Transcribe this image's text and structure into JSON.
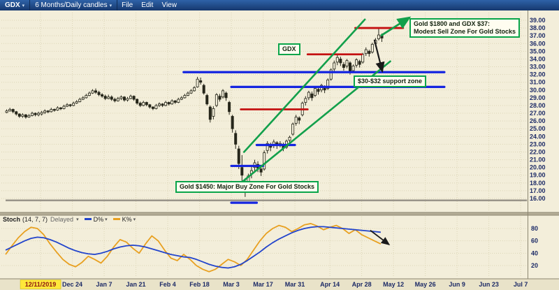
{
  "toolbar": {
    "symbol": "GDX",
    "timeframe": "6 Months/Daily candles",
    "caret": "▾",
    "menus": [
      "File",
      "Edit",
      "View"
    ]
  },
  "annotations": {
    "gdx_label": "GDX",
    "sell_line1": "Gold $1800 and GDX $37:",
    "sell_line2": "Modest Sell Zone For Gold Stocks",
    "support": "$30-$32 support zone",
    "buy": "Gold $1450: Major Buy Zone For Gold Stocks"
  },
  "stoch_header": {
    "name": "Stoch",
    "params": "(14, 7, 7)",
    "delayed": "Delayed",
    "caret": "▾",
    "d_label": "D%",
    "k_label": "K%"
  },
  "colors": {
    "background": "#f3eeda",
    "toolbar_blue": "#1d4484",
    "support_blue": "#1525e0",
    "resistance_red": "#c41010",
    "channel_green": "#12a04b",
    "annotation_green": "#0aa54a",
    "d_line_blue": "#2244cc",
    "k_line_orange": "#e8a020",
    "highlight_yellow": "#ffe83a"
  },
  "price_axis": [
    "39.00",
    "38.00",
    "37.00",
    "36.00",
    "35.00",
    "34.00",
    "33.00",
    "32.00",
    "31.00",
    "30.00",
    "29.00",
    "28.00",
    "27.00",
    "26.00",
    "25.00",
    "24.00",
    "23.00",
    "22.00",
    "21.00",
    "20.00",
    "19.00",
    "18.00",
    "17.00",
    "16.00"
  ],
  "stoch_axis": [
    "80",
    "60",
    "40",
    "20"
  ],
  "chart_data": {
    "type": "candlestick",
    "symbol": "GDX",
    "timeframe": "6 Months / Daily",
    "price_range": [
      16,
      39
    ],
    "date_ticks": [
      {
        "label": "12/11/2019",
        "slot": 11,
        "highlight": true
      },
      {
        "label": "Dec 24",
        "slot": 21
      },
      {
        "label": "Jan 7",
        "slot": 31
      },
      {
        "label": "Jan 21",
        "slot": 41
      },
      {
        "label": "Feb 4",
        "slot": 51
      },
      {
        "label": "Feb 18",
        "slot": 61
      },
      {
        "label": "Mar 3",
        "slot": 71
      },
      {
        "label": "Mar 17",
        "slot": 81
      },
      {
        "label": "Mar 31",
        "slot": 91
      },
      {
        "label": "Apr 14",
        "slot": 102
      },
      {
        "label": "Apr 28",
        "slot": 112
      },
      {
        "label": "May 12",
        "slot": 122
      },
      {
        "label": "May 26",
        "slot": 132
      },
      {
        "label": "Jun 9",
        "slot": 142
      },
      {
        "label": "Jun 23",
        "slot": 152
      },
      {
        "label": "Jul 7",
        "slot": 162
      }
    ],
    "candles_ohlc": [
      [
        27.1,
        27.5,
        27.0,
        27.3
      ],
      [
        27.3,
        27.7,
        27.2,
        27.5
      ],
      [
        27.5,
        27.6,
        27.0,
        27.2
      ],
      [
        27.2,
        27.3,
        26.7,
        26.9
      ],
      [
        26.9,
        27.0,
        26.4,
        26.6
      ],
      [
        26.6,
        27.0,
        26.4,
        26.8
      ],
      [
        26.8,
        26.9,
        26.3,
        26.5
      ],
      [
        26.5,
        26.9,
        26.4,
        26.7
      ],
      [
        26.7,
        27.2,
        26.6,
        27.0
      ],
      [
        27.0,
        27.1,
        26.6,
        26.8
      ],
      [
        26.8,
        27.2,
        26.6,
        27.0
      ],
      [
        26.9,
        27.3,
        26.7,
        27.1
      ],
      [
        27.1,
        27.5,
        26.9,
        27.3
      ],
      [
        27.3,
        27.4,
        27.0,
        27.2
      ],
      [
        27.2,
        27.7,
        27.1,
        27.5
      ],
      [
        27.5,
        27.6,
        27.2,
        27.4
      ],
      [
        27.4,
        27.9,
        27.3,
        27.7
      ],
      [
        27.7,
        27.8,
        27.4,
        27.6
      ],
      [
        27.6,
        28.1,
        27.5,
        27.9
      ],
      [
        27.9,
        28.3,
        27.8,
        28.1
      ],
      [
        28.1,
        28.2,
        27.8,
        28.0
      ],
      [
        28.0,
        28.5,
        27.9,
        28.3
      ],
      [
        28.3,
        28.7,
        28.2,
        28.5
      ],
      [
        28.5,
        29.0,
        28.4,
        28.8
      ],
      [
        28.8,
        29.2,
        28.7,
        29.0
      ],
      [
        29.0,
        29.5,
        28.9,
        29.3
      ],
      [
        29.3,
        29.8,
        29.2,
        29.6
      ],
      [
        29.6,
        30.1,
        29.5,
        29.9
      ],
      [
        29.9,
        30.2,
        29.5,
        29.7
      ],
      [
        29.7,
        29.9,
        29.2,
        29.4
      ],
      [
        29.4,
        29.6,
        29.0,
        29.2
      ],
      [
        29.2,
        29.4,
        28.7,
        28.9
      ],
      [
        28.9,
        29.4,
        28.8,
        29.1
      ],
      [
        29.1,
        29.3,
        28.6,
        28.8
      ],
      [
        28.8,
        29.0,
        28.4,
        28.6
      ],
      [
        28.6,
        29.1,
        28.5,
        28.9
      ],
      [
        28.9,
        29.3,
        28.7,
        29.1
      ],
      [
        29.1,
        29.2,
        28.5,
        28.7
      ],
      [
        28.7,
        29.1,
        28.5,
        28.9
      ],
      [
        28.9,
        29.4,
        28.8,
        29.2
      ],
      [
        29.2,
        29.3,
        28.6,
        28.8
      ],
      [
        28.8,
        28.9,
        28.1,
        28.3
      ],
      [
        28.3,
        28.5,
        27.8,
        28.0
      ],
      [
        28.0,
        28.6,
        27.9,
        28.4
      ],
      [
        28.4,
        28.5,
        27.9,
        28.1
      ],
      [
        28.1,
        28.2,
        27.6,
        27.8
      ],
      [
        27.8,
        27.9,
        27.4,
        27.6
      ],
      [
        27.6,
        28.2,
        27.5,
        28.0
      ],
      [
        28.0,
        28.4,
        27.8,
        28.2
      ],
      [
        28.2,
        28.3,
        27.8,
        28.0
      ],
      [
        28.0,
        28.6,
        27.9,
        28.4
      ],
      [
        28.4,
        28.5,
        28.0,
        28.2
      ],
      [
        28.2,
        28.8,
        28.1,
        28.6
      ],
      [
        28.6,
        28.7,
        28.2,
        28.4
      ],
      [
        28.4,
        29.0,
        28.3,
        28.8
      ],
      [
        28.8,
        29.2,
        28.7,
        29.0
      ],
      [
        29.0,
        29.5,
        28.9,
        29.3
      ],
      [
        29.3,
        29.8,
        29.2,
        29.6
      ],
      [
        29.6,
        30.1,
        29.5,
        29.9
      ],
      [
        29.9,
        30.5,
        29.8,
        30.3
      ],
      [
        30.4,
        31.7,
        30.3,
        31.4
      ],
      [
        31.2,
        31.6,
        30.7,
        31.0
      ],
      [
        30.6,
        30.8,
        29.4,
        29.6
      ],
      [
        29.3,
        29.5,
        28.0,
        28.2
      ],
      [
        27.8,
        28.0,
        25.8,
        26.2
      ],
      [
        26.6,
        27.9,
        26.2,
        27.6
      ],
      [
        28.0,
        29.6,
        27.8,
        29.4
      ],
      [
        29.2,
        29.5,
        28.5,
        28.8
      ],
      [
        29.1,
        30.1,
        28.9,
        29.9
      ],
      [
        29.6,
        29.8,
        28.6,
        29.0
      ],
      [
        28.4,
        28.6,
        26.8,
        27.2
      ],
      [
        26.6,
        26.8,
        24.5,
        25.0
      ],
      [
        24.4,
        24.8,
        22.4,
        23.0
      ],
      [
        22.4,
        22.8,
        19.8,
        20.5
      ],
      [
        20.0,
        21.6,
        18.2,
        19.0
      ],
      [
        18.2,
        18.6,
        16.2,
        16.9
      ],
      [
        17.2,
        19.2,
        16.8,
        18.9
      ],
      [
        19.2,
        20.2,
        18.6,
        19.6
      ],
      [
        20.0,
        21.0,
        19.4,
        20.6
      ],
      [
        20.4,
        20.8,
        19.4,
        19.9
      ],
      [
        19.8,
        20.0,
        18.9,
        19.4
      ],
      [
        19.8,
        22.2,
        19.6,
        21.9
      ],
      [
        22.2,
        23.4,
        21.8,
        23.1
      ],
      [
        23.0,
        23.2,
        22.1,
        22.6
      ],
      [
        22.8,
        23.6,
        22.5,
        23.3
      ],
      [
        23.2,
        23.4,
        22.4,
        22.8
      ],
      [
        22.9,
        23.4,
        22.6,
        23.1
      ],
      [
        23.0,
        23.2,
        22.1,
        22.5
      ],
      [
        22.6,
        23.6,
        22.4,
        23.4
      ],
      [
        23.5,
        24.1,
        23.2,
        23.9
      ],
      [
        24.3,
        25.8,
        24.1,
        25.6
      ],
      [
        25.7,
        26.8,
        25.4,
        26.5
      ],
      [
        26.4,
        26.6,
        25.6,
        26.1
      ],
      [
        26.8,
        28.5,
        26.6,
        28.3
      ],
      [
        28.4,
        29.2,
        28.0,
        28.9
      ],
      [
        29.0,
        29.9,
        28.7,
        29.7
      ],
      [
        29.5,
        29.8,
        28.6,
        29.0
      ],
      [
        29.3,
        30.4,
        29.1,
        30.2
      ],
      [
        30.1,
        30.3,
        29.4,
        29.8
      ],
      [
        30.0,
        30.8,
        29.7,
        30.6
      ],
      [
        30.4,
        30.6,
        29.6,
        30.0
      ],
      [
        30.2,
        31.5,
        30.0,
        31.3
      ],
      [
        31.4,
        32.8,
        31.2,
        32.6
      ],
      [
        32.7,
        33.8,
        32.4,
        33.5
      ],
      [
        33.6,
        34.5,
        33.2,
        34.2
      ],
      [
        34.0,
        34.3,
        33.1,
        33.5
      ],
      [
        33.3,
        33.6,
        32.5,
        32.9
      ],
      [
        33.1,
        34.0,
        32.8,
        33.8
      ],
      [
        33.5,
        33.7,
        32.0,
        32.3
      ],
      [
        32.5,
        33.3,
        32.2,
        33.1
      ],
      [
        33.2,
        34.1,
        32.9,
        33.9
      ],
      [
        33.7,
        33.9,
        32.9,
        33.3
      ],
      [
        33.6,
        34.8,
        33.4,
        34.6
      ],
      [
        34.7,
        35.5,
        34.4,
        35.2
      ],
      [
        35.0,
        35.2,
        34.3,
        34.7
      ],
      [
        34.9,
        36.1,
        34.7,
        35.9
      ],
      [
        36.0,
        36.7,
        35.6,
        36.4
      ],
      [
        36.6,
        37.9,
        36.4,
        37.1
      ],
      [
        37.0,
        37.3,
        36.2,
        36.7
      ]
    ],
    "overlays": {
      "blue_lines": [
        {
          "price": 32.3,
          "from": 56,
          "to": 138
        },
        {
          "price": 30.4,
          "from": 71,
          "to": 138
        },
        {
          "price": 22.9,
          "from": 79,
          "to": 91
        },
        {
          "price": 20.2,
          "from": 71,
          "to": 81
        },
        {
          "price": 15.45,
          "from": 71,
          "to": 79
        }
      ],
      "red_lines": [
        {
          "price": 27.5,
          "from": 74,
          "to": 95
        },
        {
          "price": 34.6,
          "from": 95,
          "to": 112
        },
        {
          "price": 38.0,
          "from": 110,
          "to": 125
        }
      ],
      "gray_line": {
        "price": 15.75,
        "from": 0,
        "to": 164
      },
      "channel": [
        {
          "from": [
            74,
            18.0
          ],
          "to": [
            121,
            33.7
          ]
        },
        {
          "from": [
            75,
            22.0
          ],
          "to": [
            113,
            39.1
          ]
        }
      ],
      "arrows": [
        {
          "color": "green",
          "from": [
            118,
            37.0
          ],
          "to": [
            127,
            39.35
          ]
        },
        {
          "color": "black",
          "from": [
            116,
            36.5
          ],
          "to": [
            118.5,
            32.4
          ]
        }
      ]
    },
    "stochastic": {
      "range": [
        0,
        100
      ],
      "ticks": [
        80,
        60,
        40,
        20
      ],
      "slot_step": 2,
      "d": [
        45,
        50,
        55,
        60,
        64,
        66,
        65,
        62,
        58,
        53,
        48,
        44,
        41,
        39,
        38,
        40,
        43,
        47,
        50,
        52,
        53,
        52,
        50,
        47,
        44,
        41,
        38,
        36,
        34,
        33,
        30,
        26,
        22,
        19,
        17,
        16,
        18,
        22,
        28,
        35,
        42,
        50,
        57,
        63,
        68,
        73,
        77,
        80,
        82,
        83,
        83,
        82,
        81,
        80,
        79,
        78,
        77,
        76,
        75,
        74
      ],
      "k": [
        38,
        52,
        65,
        75,
        82,
        80,
        70,
        55,
        42,
        30,
        22,
        18,
        25,
        35,
        30,
        24,
        35,
        50,
        62,
        58,
        48,
        40,
        55,
        68,
        60,
        45,
        32,
        28,
        38,
        30,
        20,
        14,
        10,
        14,
        22,
        30,
        26,
        20,
        30,
        45,
        60,
        72,
        80,
        85,
        82,
        75,
        80,
        86,
        88,
        84,
        78,
        82,
        85,
        80,
        72,
        78,
        70,
        65,
        60,
        55
      ],
      "arrow": {
        "from": [
          114.7,
          77
        ],
        "to": [
          120.6,
          54
        ]
      }
    }
  }
}
